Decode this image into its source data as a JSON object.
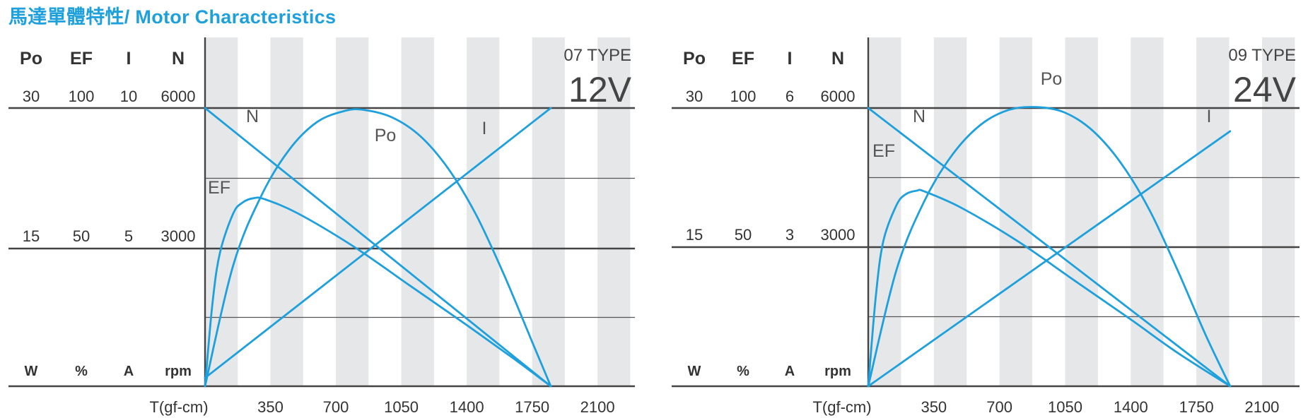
{
  "page": {
    "title": "馬達單體特性/ Motor Characteristics",
    "accent_color": "#1ea0dc"
  },
  "chart_data": [
    {
      "type": "line",
      "model_label": "07 TYPE",
      "voltage_label": "12V",
      "xlabel": "T(gf-cm)",
      "x_ticks": [
        350,
        700,
        1050,
        1400,
        1750,
        2100
      ],
      "xlim": [
        0,
        2300
      ],
      "y_axes": [
        {
          "name": "Po",
          "unit": "W",
          "ticks": [
            15,
            30
          ],
          "max": 30
        },
        {
          "name": "EF",
          "unit": "%",
          "ticks": [
            50,
            100
          ],
          "max": 100
        },
        {
          "name": "I",
          "unit": "A",
          "ticks": [
            5,
            10
          ],
          "max": 10
        },
        {
          "name": "N",
          "unit": "rpm",
          "ticks": [
            3000,
            6000
          ],
          "max": 6000
        }
      ],
      "curve_labels": {
        "N": "N",
        "Po": "Po",
        "I": "I",
        "EF": "EF"
      },
      "series": [
        {
          "name": "N",
          "axis": "N",
          "x": [
            0,
            1850
          ],
          "y": [
            6000,
            0
          ]
        },
        {
          "name": "I",
          "axis": "I",
          "x": [
            0,
            1850
          ],
          "y": [
            0.3,
            10
          ]
        },
        {
          "name": "Po",
          "axis": "Po",
          "x": [
            0,
            150,
            300,
            450,
            600,
            750,
            850,
            1000,
            1150,
            1300,
            1450,
            1600,
            1750,
            1850
          ],
          "y": [
            0,
            13,
            20.5,
            25.5,
            28.5,
            29.7,
            29.8,
            29.0,
            27.0,
            23.5,
            18.5,
            12.0,
            4.8,
            0
          ]
        },
        {
          "name": "EF",
          "axis": "EF",
          "x": [
            0,
            40,
            80,
            150,
            200,
            260,
            320,
            500,
            800,
            1100,
            1400,
            1650,
            1850
          ],
          "y": [
            0,
            30,
            48,
            62,
            66,
            67.6,
            67.2,
            62,
            50,
            36,
            22,
            10,
            0
          ]
        }
      ]
    },
    {
      "type": "line",
      "model_label": "09 TYPE",
      "voltage_label": "24V",
      "xlabel": "T(gf-cm)",
      "x_ticks": [
        350,
        700,
        1050,
        1400,
        1750,
        2100
      ],
      "xlim": [
        0,
        2300
      ],
      "y_axes": [
        {
          "name": "Po",
          "unit": "W",
          "ticks": [
            15,
            30
          ],
          "max": 30
        },
        {
          "name": "EF",
          "unit": "%",
          "ticks": [
            50,
            100
          ],
          "max": 100
        },
        {
          "name": "I",
          "unit": "A",
          "ticks": [
            3,
            6
          ],
          "max": 6
        },
        {
          "name": "N",
          "unit": "rpm",
          "ticks": [
            3000,
            6000
          ],
          "max": 6000
        }
      ],
      "curve_labels": {
        "N": "N",
        "Po": "Po",
        "I": "I",
        "EF": "EF"
      },
      "series": [
        {
          "name": "N",
          "axis": "N",
          "x": [
            0,
            1930
          ],
          "y": [
            6000,
            0
          ]
        },
        {
          "name": "I",
          "axis": "I",
          "x": [
            0,
            1930
          ],
          "y": [
            0,
            5.5
          ]
        },
        {
          "name": "Po",
          "axis": "Po",
          "x": [
            0,
            150,
            300,
            450,
            600,
            750,
            900,
            1050,
            1200,
            1350,
            1500,
            1650,
            1800,
            1930
          ],
          "y": [
            0,
            12.5,
            20.0,
            25.0,
            28.2,
            29.8,
            30.1,
            29.5,
            27.5,
            24.0,
            19.0,
            12.5,
            5.5,
            0
          ]
        },
        {
          "name": "EF",
          "axis": "EF",
          "x": [
            0,
            40,
            80,
            150,
            200,
            260,
            300,
            500,
            800,
            1100,
            1400,
            1650,
            1930
          ],
          "y": [
            0,
            32,
            52,
            65,
            69,
            70.3,
            70.0,
            64,
            52,
            38,
            24,
            12,
            0
          ]
        }
      ]
    }
  ]
}
